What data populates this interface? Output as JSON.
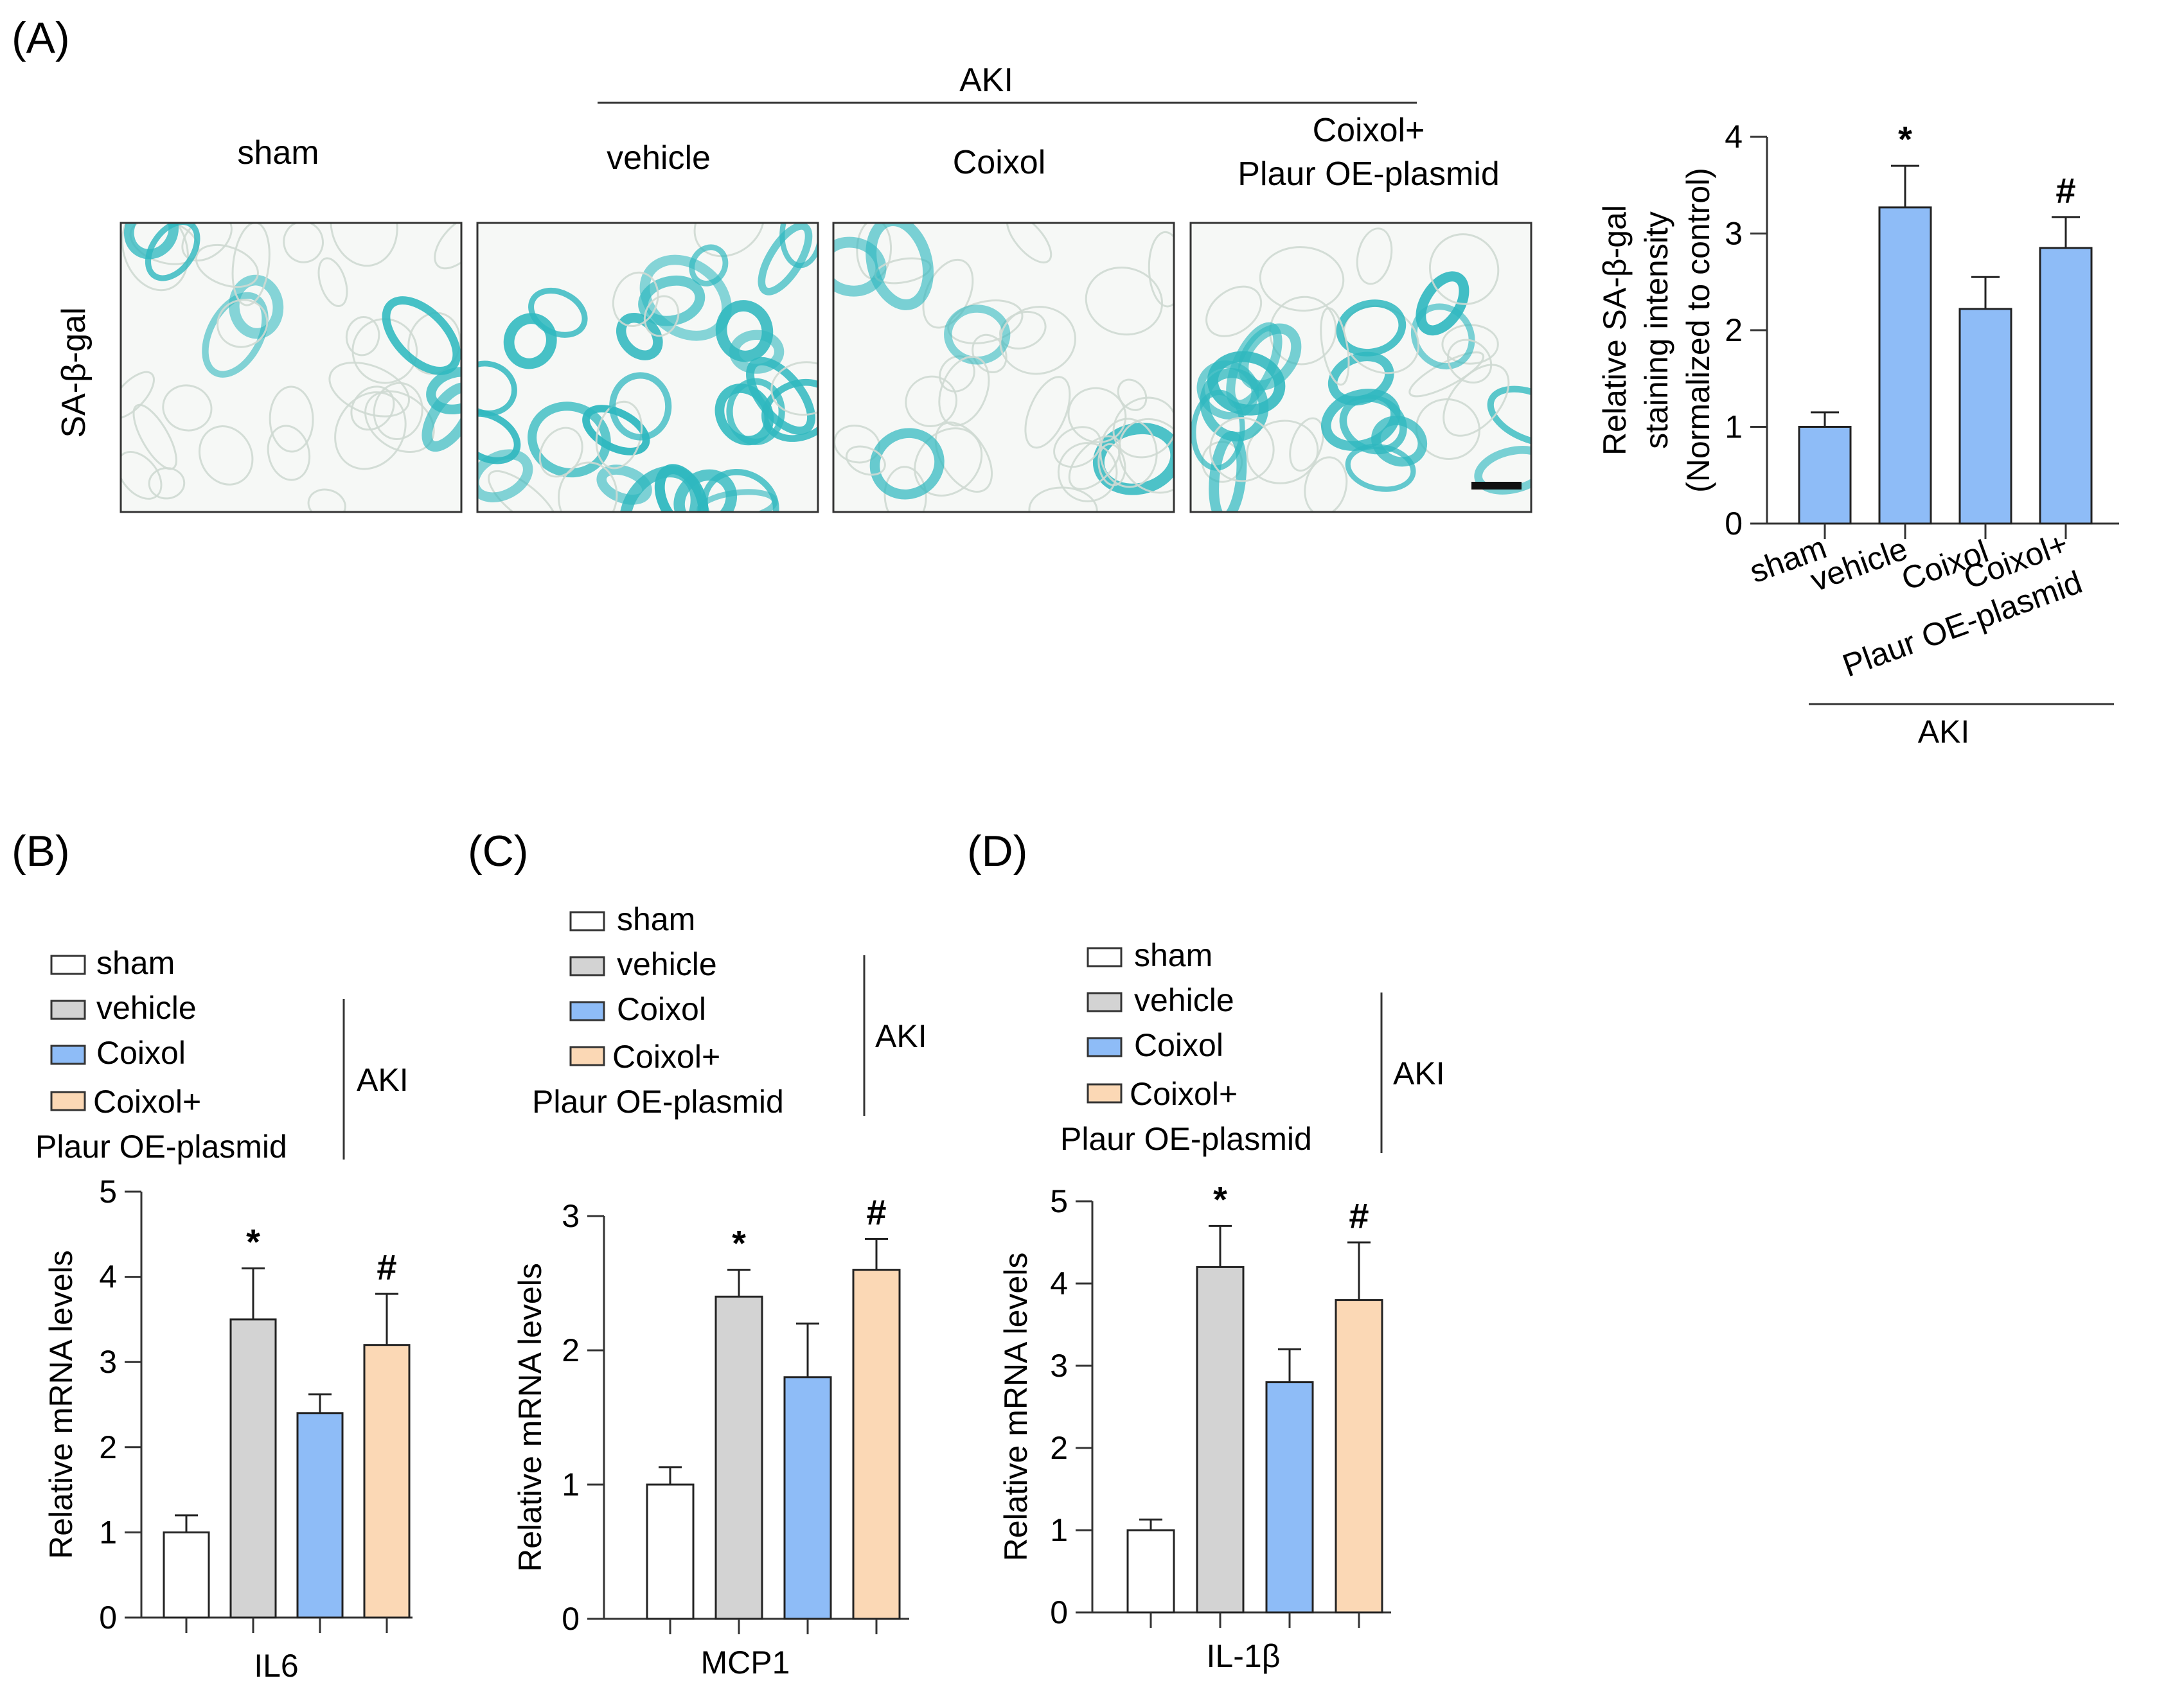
{
  "colors": {
    "sham": "#ffffff",
    "vehicle": "#d3d3d3",
    "coixol": "#8ebcf7",
    "coixol_plaur": "#fbd8b5",
    "panel_a_bars": "#8ebcf7",
    "stain": "#2fb8bf",
    "axis": "#333333"
  },
  "panel_a": {
    "label": "(A)",
    "aki_header": "AKI",
    "image_labels": [
      "sham",
      "vehicle",
      "Coixol",
      "Coixol+",
      "Plaur OE-plasmid"
    ],
    "row_label": "SA-β-gal",
    "stain_density": [
      0.08,
      0.75,
      0.2,
      0.5
    ]
  },
  "panels": {
    "b": {
      "label": "(B)"
    },
    "c": {
      "label": "(C)"
    },
    "d": {
      "label": "(D)"
    }
  },
  "legend": {
    "sham": "sham",
    "vehicle": "vehicle",
    "coixol": "Coixol",
    "coixol_plus": "Coixol+",
    "plaur": "Plaur OE-plasmid",
    "aki": "AKI"
  },
  "chart_data": [
    {
      "id": "A",
      "type": "bar",
      "categories": [
        "sham",
        "vehicle",
        "Coixol",
        "Coixol+\nPlaur OE-plasmid"
      ],
      "values": [
        1.0,
        3.27,
        2.22,
        2.85
      ],
      "errors": [
        0.15,
        0.43,
        0.33,
        0.32
      ],
      "annotations": [
        "",
        "*",
        "",
        "#"
      ],
      "ylabel": [
        "Relative SA-β-gal",
        "staining intensity",
        "(Normalized to control)"
      ],
      "yticks": [
        "0",
        "1",
        "2",
        "3",
        "4"
      ],
      "ylim": [
        0,
        4
      ],
      "group_label": "AKI"
    },
    {
      "id": "B",
      "type": "bar",
      "categories": [
        "sham",
        "vehicle",
        "Coixol",
        "Coixol+ Plaur OE-plasmid"
      ],
      "values": [
        1.0,
        3.5,
        2.4,
        3.2
      ],
      "errors": [
        0.2,
        0.6,
        0.22,
        0.6
      ],
      "annotations": [
        "",
        "*",
        "",
        "#"
      ],
      "xlabel": "IL6",
      "ylabel": "Relative mRNA levels",
      "yticks": [
        "0",
        "1",
        "2",
        "3",
        "4",
        "5"
      ],
      "ylim": [
        0,
        5
      ]
    },
    {
      "id": "C",
      "type": "bar",
      "categories": [
        "sham",
        "vehicle",
        "Coixol",
        "Coixol+ Plaur OE-plasmid"
      ],
      "values": [
        1.0,
        2.4,
        1.8,
        2.6
      ],
      "errors": [
        0.13,
        0.2,
        0.4,
        0.23
      ],
      "annotations": [
        "",
        "*",
        "",
        "#"
      ],
      "xlabel": "MCP1",
      "ylabel": "Relative mRNA levels",
      "yticks": [
        "0",
        "1",
        "2",
        "3"
      ],
      "ylim": [
        0,
        3
      ]
    },
    {
      "id": "D",
      "type": "bar",
      "categories": [
        "sham",
        "vehicle",
        "Coixol",
        "Coixol+ Plaur OE-plasmid"
      ],
      "values": [
        1.0,
        4.2,
        2.8,
        3.8
      ],
      "errors": [
        0.13,
        0.5,
        0.4,
        0.7
      ],
      "annotations": [
        "",
        "*",
        "",
        "#"
      ],
      "xlabel": "IL-1β",
      "ylabel": "Relative mRNA levels",
      "yticks": [
        "0",
        "1",
        "2",
        "3",
        "4",
        "5"
      ],
      "ylim": [
        0,
        5
      ]
    }
  ]
}
